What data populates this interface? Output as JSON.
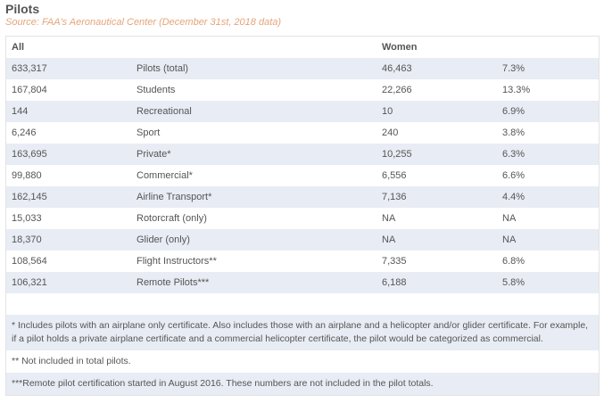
{
  "title": "Pilots",
  "source": "Source: FAA's Aeronautical Center (December 31st, 2018 data)",
  "headers": [
    "All",
    "",
    "Women",
    ""
  ],
  "rows": [
    [
      "633,317",
      "Pilots (total)",
      "46,463",
      "7.3%"
    ],
    [
      "167,804",
      "Students",
      "22,266",
      "13.3%"
    ],
    [
      "144",
      "Recreational",
      "10",
      "6.9%"
    ],
    [
      "6,246",
      "Sport",
      "240",
      "3.8%"
    ],
    [
      "163,695",
      "Private*",
      "10,255",
      "6.3%"
    ],
    [
      "99,880",
      "Commercial*",
      "6,556",
      "6.6%"
    ],
    [
      "162,145",
      "Airline Transport*",
      "7,136",
      "4.4%"
    ],
    [
      "15,033",
      "Rotorcraft (only)",
      "NA",
      "NA"
    ],
    [
      "18,370",
      "Glider (only)",
      "NA",
      "NA"
    ],
    [
      "108,564",
      "Flight Instructors**",
      "7,335",
      "6.8%"
    ],
    [
      "106,321",
      "Remote Pilots***",
      "6,188",
      "5.8%"
    ]
  ],
  "footnotes": [
    "* Includes pilots with an airplane only certificate. Also includes those with an airplane and a helicopter and/or glider certificate. For example, if a pilot holds a private airplane certificate and a commercial helicopter certificate, the pilot would be categorized as commercial.",
    "** Not included in total pilots.",
    "***Remote pilot certification started in August 2016. These numbers are not included in the pilot totals."
  ]
}
